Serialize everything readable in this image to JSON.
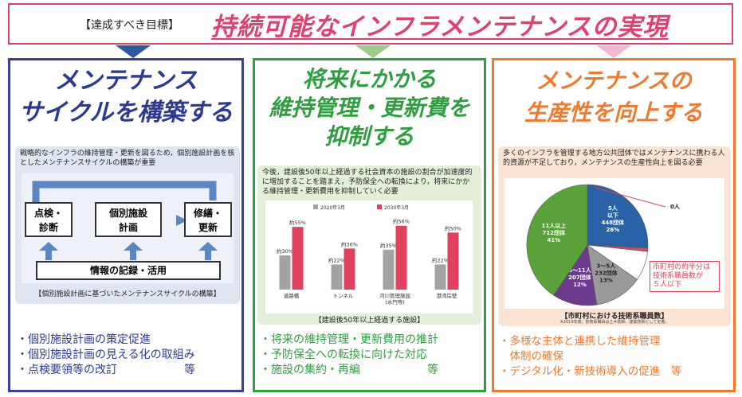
{
  "header": {
    "label": "【達成すべき目標】",
    "title": "持続可能なインフラメンテナンスの実現"
  },
  "colors": {
    "header_border": "#e0415e",
    "panel1": "#3d3d9c",
    "panel2": "#2e9f3e",
    "panel3": "#ef7a2e",
    "arrow1": "#2f5a9e",
    "arrow2": "#9ccc8e",
    "arrow3": "#f3b8cf"
  },
  "panel1": {
    "title_line1": "メンテナンス",
    "title_line2": "サイクルを構築する",
    "description": "戦略的なインフラの維持管理・更新を図るため，個別施設計画を核としたメンテナンスサイクルの構築が重要",
    "cycle": {
      "box_inspection": "点検・\n診断",
      "box_plan": "個別施設\n計画",
      "box_repair": "修繕・\n更新",
      "box_records": "情報の記録・活用"
    },
    "caption": "【個別施設計画に基づいたメンテナンスサイクルの構築】",
    "bullets": [
      "・個別施設計画の策定促進",
      "・個別施設計画の見える化の取組み",
      "・点検要領等の改訂　　　　　　等"
    ]
  },
  "panel2": {
    "title_line1": "将来にかかる",
    "title_line2": "維持管理・更新費を",
    "title_line3": "抑制する",
    "description": "今後，建設後50年以上経過する社会資本の施設の割合が加速度的に増加することを踏まえ，予防保全への転換により，将来にかかる維持管理・更新費用を抑制していく必要",
    "legend": [
      "2020年3月",
      "2030年3月"
    ],
    "caption": "【建設後50年以上経過する施設】",
    "bullets": [
      "・将来の維持管理・更新費用の推計",
      "・予防保全への転換に向けた対応",
      "・施設の集約・再編　　　　　　等"
    ]
  },
  "panel3": {
    "title_line1": "メンテナンスの",
    "title_line2": "生産性を向上する",
    "description": "多くのインフラを管理する地方公共団体ではメンテナンスに携わる人的資源が不足しており，メンテナンスの生産性向上を図る必要",
    "callout": "市町村の約半分は\n技術系職員数が\n５人以下",
    "caption": "【市町村における技術系職員数】",
    "note": "※2019年度。技術系職員は土木技師、建築技師として定義。",
    "bullets": [
      "・多様な主体と連携した維持管理",
      "　体制の確保",
      "・デジタル化・新技術導入の促進　等"
    ]
  },
  "chart_data": [
    {
      "type": "bar",
      "categories": [
        "道路橋",
        "トンネル",
        "河川管理施設\n(水門等)",
        "港湾岸壁"
      ],
      "series": [
        {
          "name": "2020年3月",
          "values": [
            30,
            22,
            35,
            22
          ],
          "labels": [
            "約30%",
            "約22%",
            "約35%",
            "約22%"
          ]
        },
        {
          "name": "2030年3月",
          "values": [
            55,
            36,
            56,
            50
          ],
          "labels": [
            "約55%",
            "約36%",
            "約56%",
            "約50%"
          ]
        }
      ],
      "ylim": [
        0,
        60
      ],
      "grid": false,
      "legend": "top"
    },
    {
      "type": "pie",
      "slices": [
        {
          "label": "5人\n以下",
          "sub": "448団体",
          "pct_label": "26%",
          "value": 26,
          "color": "#2a62a8"
        },
        {
          "label": "0人",
          "sub": "",
          "pct_label": "",
          "value": 1,
          "color": "#e0415e"
        },
        {
          "label": "1～2人",
          "sub": "142団体",
          "pct_label": "8%",
          "value": 8,
          "color": "#ffffff"
        },
        {
          "label": "3～5人",
          "sub": "232団体",
          "pct_label": "13%",
          "value": 13,
          "color": "#9a9a9a"
        },
        {
          "label": "6～11人",
          "sub": "207団体",
          "pct_label": "12%",
          "value": 12,
          "color": "#6c3b8e"
        },
        {
          "label": "11人以上",
          "sub": "712団体",
          "pct_label": "41%",
          "value": 41,
          "color": "#5aa33a"
        }
      ]
    }
  ]
}
